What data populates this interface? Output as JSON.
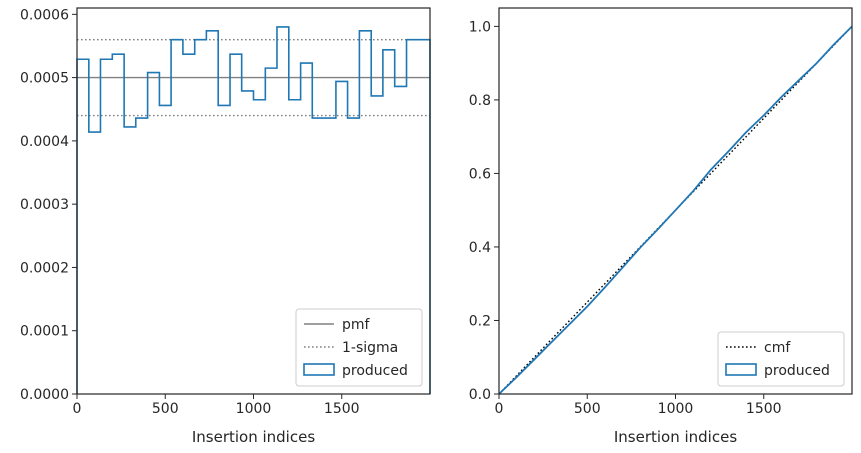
{
  "chart_data": [
    {
      "type": "line",
      "title": "",
      "xlabel": "Insertion indices",
      "ylabel": "",
      "xlim": [
        0,
        2000
      ],
      "ylim": [
        0,
        0.00061
      ],
      "xticks": [
        0,
        500,
        1000,
        1500
      ],
      "xtick_labels": [
        "0",
        "500",
        "1000",
        "1500"
      ],
      "yticks": [
        0,
        0.0001,
        0.0002,
        0.0003,
        0.0004,
        0.0005,
        0.0006
      ],
      "ytick_labels": [
        "0.0000",
        "0.0001",
        "0.0002",
        "0.0003",
        "0.0004",
        "0.0005",
        "0.0006"
      ],
      "grid": false,
      "legend_position": "lower-right",
      "series": [
        {
          "name": "pmf",
          "kind": "hline",
          "y": 0.0005,
          "color": "#808080",
          "style": "solid"
        },
        {
          "name": "1-sigma",
          "kind": "hline",
          "y": [
            0.00044,
            0.00056
          ],
          "color": "#808080",
          "style": "dotted"
        },
        {
          "name": "produced",
          "kind": "step-histogram",
          "color": "#1f77b4",
          "bin_edges": [
            0,
            67,
            133,
            200,
            267,
            333,
            400,
            467,
            533,
            600,
            667,
            733,
            800,
            867,
            933,
            1000,
            1067,
            1133,
            1200,
            1267,
            1333,
            1400,
            1467,
            1533,
            1600,
            1667,
            1733,
            1800,
            1867,
            1933,
            2000
          ],
          "values": [
            0.000529,
            0.000414,
            0.000529,
            0.000537,
            0.000422,
            0.000436,
            0.000508,
            0.000456,
            0.00056,
            0.000537,
            0.00056,
            0.000574,
            0.000456,
            0.000537,
            0.000479,
            0.000465,
            0.000515,
            0.00058,
            0.000465,
            0.000523,
            0.000436,
            0.000436,
            0.000494,
            0.000436,
            0.000574,
            0.000471,
            0.000544,
            0.000486,
            0.00056,
            0.00056
          ]
        }
      ]
    },
    {
      "type": "line",
      "title": "",
      "xlabel": "Insertion indices",
      "ylabel": "",
      "xlim": [
        0,
        2000
      ],
      "ylim": [
        0,
        1.05
      ],
      "xticks": [
        0,
        500,
        1000,
        1500
      ],
      "xtick_labels": [
        "0",
        "500",
        "1000",
        "1500"
      ],
      "yticks": [
        0,
        0.2,
        0.4,
        0.6,
        0.8,
        1.0
      ],
      "ytick_labels": [
        "0.0",
        "0.2",
        "0.4",
        "0.6",
        "0.8",
        "1.0"
      ],
      "grid": false,
      "legend_position": "lower-right",
      "series": [
        {
          "name": "cmf",
          "kind": "line",
          "color": "#000000",
          "style": "dotted",
          "x": [
            0,
            2000
          ],
          "y": [
            0,
            1.0
          ]
        },
        {
          "name": "produced",
          "kind": "step-histogram",
          "color": "#1f77b4",
          "x": [
            0,
            100,
            200,
            300,
            400,
            500,
            600,
            700,
            800,
            900,
            1000,
            1100,
            1200,
            1300,
            1400,
            1500,
            1600,
            1700,
            1800,
            1900,
            2000
          ],
          "y": [
            0,
            0.046,
            0.094,
            0.142,
            0.19,
            0.238,
            0.29,
            0.344,
            0.398,
            0.448,
            0.5,
            0.552,
            0.61,
            0.66,
            0.712,
            0.758,
            0.808,
            0.854,
            0.9,
            0.952,
            1.0
          ]
        }
      ]
    }
  ]
}
